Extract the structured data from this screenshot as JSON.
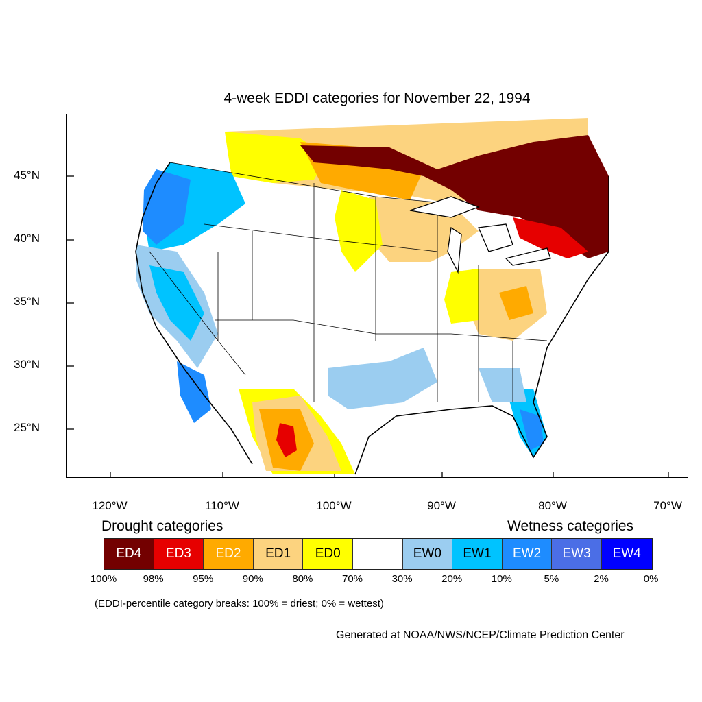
{
  "title": "4-week EDDI categories for November 22, 1994",
  "lat_labels": [
    "45°N",
    "40°N",
    "35°N",
    "30°N",
    "25°N"
  ],
  "lon_labels": [
    "120°W",
    "110°W",
    "100°W",
    "90°W",
    "80°W",
    "70°W"
  ],
  "drought_heading": "Drought categories",
  "wetness_heading": "Wetness categories",
  "categories": [
    {
      "label": "ED4",
      "color": "#730000",
      "text_color": "#ffffff"
    },
    {
      "label": "ED3",
      "color": "#e60000",
      "text_color": "#ffffff"
    },
    {
      "label": "ED2",
      "color": "#ffaa00",
      "text_color": "#ffffff"
    },
    {
      "label": "ED1",
      "color": "#fcd37f",
      "text_color": "#000000"
    },
    {
      "label": "ED0",
      "color": "#ffff00",
      "text_color": "#000000"
    },
    {
      "label": "",
      "color": "#ffffff",
      "text_color": "#000000"
    },
    {
      "label": "EW0",
      "color": "#9bcdf0",
      "text_color": "#000000"
    },
    {
      "label": "EW1",
      "color": "#00c3ff",
      "text_color": "#000000"
    },
    {
      "label": "EW2",
      "color": "#1e8cff",
      "text_color": "#ffffff"
    },
    {
      "label": "EW3",
      "color": "#4b6ee6",
      "text_color": "#ffffff"
    },
    {
      "label": "EW4",
      "color": "#0000ff",
      "text_color": "#ffffff"
    }
  ],
  "percent_breaks": [
    "100%",
    "98%",
    "95%",
    "90%",
    "80%",
    "70%",
    "30%",
    "20%",
    "10%",
    "5%",
    "2%",
    "0%"
  ],
  "note": "(EDDI-percentile category breaks: 100% = driest; 0% = wettest)",
  "credit": "Generated at NOAA/NWS/NCEP/Climate Prediction Center"
}
